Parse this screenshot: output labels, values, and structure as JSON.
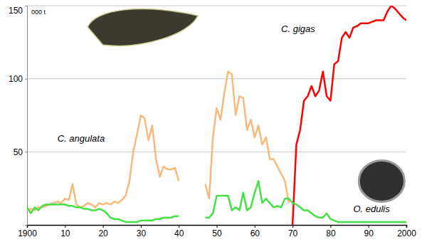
{
  "chart_data": {
    "type": "line",
    "ylabel": "000 t",
    "x": [
      1900,
      1901,
      1902,
      1903,
      1904,
      1905,
      1906,
      1907,
      1908,
      1909,
      1910,
      1911,
      1912,
      1913,
      1914,
      1915,
      1916,
      1917,
      1918,
      1919,
      1920,
      1921,
      1922,
      1923,
      1924,
      1925,
      1926,
      1927,
      1928,
      1929,
      1930,
      1931,
      1932,
      1933,
      1934,
      1935,
      1936,
      1937,
      1938,
      1939,
      1940,
      1941,
      1942,
      1943,
      1944,
      1945,
      1946,
      1947,
      1948,
      1949,
      1950,
      1951,
      1952,
      1953,
      1954,
      1955,
      1956,
      1957,
      1958,
      1959,
      1960,
      1961,
      1962,
      1963,
      1964,
      1965,
      1966,
      1967,
      1968,
      1969,
      1970,
      1971,
      1972,
      1973,
      1974,
      1975,
      1976,
      1977,
      1978,
      1979,
      1980,
      1981,
      1982,
      1983,
      1984,
      1985,
      1986,
      1987,
      1988,
      1989,
      1990,
      1991,
      1992,
      1993,
      1994,
      1995,
      1996,
      1997,
      1998,
      1999,
      2000
    ],
    "xlim": [
      1900,
      2000
    ],
    "xticks": [
      1900,
      {
        "value": 1910,
        "label": "10"
      },
      {
        "value": 1920,
        "label": "20"
      },
      {
        "value": 1930,
        "label": "30"
      },
      {
        "value": 1940,
        "label": "40"
      },
      {
        "value": 1950,
        "label": "50"
      },
      {
        "value": 1960,
        "label": "60"
      },
      {
        "value": 1970,
        "label": "70"
      },
      {
        "value": 1980,
        "label": "80"
      },
      {
        "value": 1990,
        "label": "90"
      },
      2000
    ],
    "ylim": [
      0,
      150
    ],
    "yticks": [
      50,
      100,
      150
    ],
    "grid": true,
    "series": [
      {
        "name": "C. angulata",
        "color": "#f7b97c",
        "values": [
          10,
          11,
          10,
          12,
          12,
          13,
          14,
          15,
          16,
          15,
          18,
          17,
          28,
          14,
          12,
          13,
          15,
          14,
          12,
          15,
          14,
          15,
          14,
          16,
          15,
          17,
          20,
          30,
          50,
          62,
          75,
          73,
          58,
          68,
          45,
          33,
          40,
          38,
          38,
          39,
          30,
          null,
          null,
          null,
          null,
          null,
          null,
          28,
          18,
          60,
          80,
          72,
          90,
          105,
          103,
          75,
          88,
          87,
          65,
          72,
          60,
          68,
          55,
          60,
          45,
          45,
          40,
          35,
          30,
          15,
          null,
          null,
          null,
          null,
          null,
          null,
          null,
          null,
          null,
          null,
          null,
          null,
          null,
          null,
          null,
          null,
          null,
          null,
          null,
          null,
          null,
          null,
          null,
          null,
          null,
          null,
          null,
          null,
          null,
          null,
          null
        ]
      },
      {
        "name": "C. gigas",
        "color": "#ff0000",
        "values": [
          null,
          null,
          null,
          null,
          null,
          null,
          null,
          null,
          null,
          null,
          null,
          null,
          null,
          null,
          null,
          null,
          null,
          null,
          null,
          null,
          null,
          null,
          null,
          null,
          null,
          null,
          null,
          null,
          null,
          null,
          null,
          null,
          null,
          null,
          null,
          null,
          null,
          null,
          null,
          null,
          null,
          null,
          null,
          null,
          null,
          null,
          null,
          null,
          null,
          null,
          null,
          null,
          null,
          null,
          null,
          null,
          null,
          null,
          null,
          null,
          null,
          null,
          null,
          null,
          null,
          null,
          null,
          null,
          null,
          null,
          0,
          55,
          65,
          85,
          88,
          95,
          88,
          92,
          105,
          88,
          85,
          110,
          112,
          128,
          132,
          128,
          135,
          136,
          138,
          138,
          138,
          139,
          140,
          140,
          140,
          146,
          150,
          148,
          145,
          142,
          140
        ]
      },
      {
        "name": "O. edulis",
        "color": "#44e044",
        "values": [
          12,
          8,
          12,
          10,
          13,
          14,
          14,
          14,
          14,
          14,
          14,
          13,
          13,
          12,
          12,
          11,
          11,
          10,
          10,
          11,
          10,
          8,
          5,
          4,
          4,
          3,
          2,
          2,
          2,
          2,
          3,
          3,
          3,
          3,
          4,
          4,
          5,
          5,
          5,
          6,
          6,
          null,
          null,
          null,
          null,
          null,
          null,
          5,
          5,
          8,
          20,
          20,
          20,
          20,
          10,
          12,
          10,
          22,
          10,
          12,
          22,
          30,
          15,
          18,
          15,
          12,
          13,
          12,
          18,
          18,
          15,
          14,
          12,
          10,
          10,
          8,
          6,
          5,
          5,
          8,
          4,
          3,
          2,
          2,
          2,
          2,
          2,
          2,
          2,
          2,
          2,
          2,
          2,
          2,
          2,
          2,
          2,
          2,
          2,
          2,
          2
        ]
      }
    ]
  }
}
